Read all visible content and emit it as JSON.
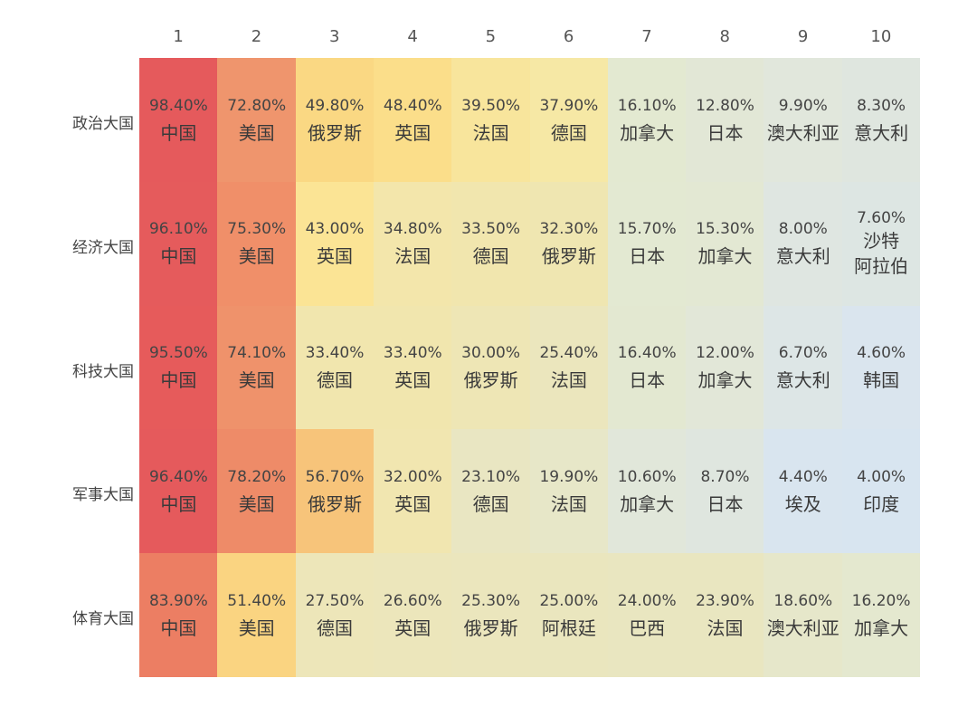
{
  "chart_data": {
    "type": "heatmap",
    "title": "",
    "columns": [
      "1",
      "2",
      "3",
      "4",
      "5",
      "6",
      "7",
      "8",
      "9",
      "10"
    ],
    "rows": [
      {
        "label": "政治大国",
        "cells": [
          {
            "value": "98.40%",
            "country": "中国",
            "color": "#e55a5c"
          },
          {
            "value": "72.80%",
            "country": "美国",
            "color": "#ef956d"
          },
          {
            "value": "49.80%",
            "country": "俄罗斯",
            "color": "#fad883"
          },
          {
            "value": "48.40%",
            "country": "英国",
            "color": "#fbde8a"
          },
          {
            "value": "39.50%",
            "country": "法国",
            "color": "#f8e59c"
          },
          {
            "value": "37.90%",
            "country": "德国",
            "color": "#f6e8a5"
          },
          {
            "value": "16.10%",
            "country": "加拿大",
            "color": "#e3e9d1"
          },
          {
            "value": "12.80%",
            "country": "日本",
            "color": "#e2e7d6"
          },
          {
            "value": "9.90%",
            "country": "澳大利亚",
            "color": "#e1e7dc"
          },
          {
            "value": "8.30%",
            "country": "意大利",
            "color": "#dfe6df"
          }
        ]
      },
      {
        "label": "经济大国",
        "cells": [
          {
            "value": "96.10%",
            "country": "中国",
            "color": "#e55b5c"
          },
          {
            "value": "75.30%",
            "country": "美国",
            "color": "#f08f69"
          },
          {
            "value": "43.00%",
            "country": "英国",
            "color": "#fbe495"
          },
          {
            "value": "34.80%",
            "country": "法国",
            "color": "#f3e6ab"
          },
          {
            "value": "33.50%",
            "country": "德国",
            "color": "#f1e6ae"
          },
          {
            "value": "32.30%",
            "country": "俄罗斯",
            "color": "#efe6b1"
          },
          {
            "value": "15.70%",
            "country": "日本",
            "color": "#e3e9d2"
          },
          {
            "value": "15.30%",
            "country": "加拿大",
            "color": "#e3e8d3"
          },
          {
            "value": "8.00%",
            "country": "意大利",
            "color": "#dfe6e1"
          },
          {
            "value": "7.60%",
            "country": "沙特\n阿拉伯",
            "color": "#dde6e3"
          }
        ]
      },
      {
        "label": "科技大国",
        "cells": [
          {
            "value": "95.50%",
            "country": "中国",
            "color": "#e65b5b"
          },
          {
            "value": "74.10%",
            "country": "美国",
            "color": "#ef926b"
          },
          {
            "value": "33.40%",
            "country": "德国",
            "color": "#f1e6ae"
          },
          {
            "value": "33.40%",
            "country": "英国",
            "color": "#f1e6ae"
          },
          {
            "value": "30.00%",
            "country": "俄罗斯",
            "color": "#eee6b5"
          },
          {
            "value": "25.40%",
            "country": "法国",
            "color": "#ebe6bd"
          },
          {
            "value": "16.40%",
            "country": "日本",
            "color": "#e3e8d1"
          },
          {
            "value": "12.00%",
            "country": "加拿大",
            "color": "#e2e7d8"
          },
          {
            "value": "6.70%",
            "country": "意大利",
            "color": "#dde6e6"
          },
          {
            "value": "4.60%",
            "country": "韩国",
            "color": "#dae5ee"
          }
        ]
      },
      {
        "label": "军事大国",
        "cells": [
          {
            "value": "96.40%",
            "country": "中国",
            "color": "#e55a5c"
          },
          {
            "value": "78.20%",
            "country": "美国",
            "color": "#ee8b68"
          },
          {
            "value": "56.70%",
            "country": "俄罗斯",
            "color": "#f7c47a"
          },
          {
            "value": "32.00%",
            "country": "英国",
            "color": "#f1e6b0"
          },
          {
            "value": "23.10%",
            "country": "德国",
            "color": "#e9e6c2"
          },
          {
            "value": "19.90%",
            "country": "法国",
            "color": "#e7e7c8"
          },
          {
            "value": "10.60%",
            "country": "加拿大",
            "color": "#e1e7da"
          },
          {
            "value": "8.70%",
            "country": "日本",
            "color": "#dfe6df"
          },
          {
            "value": "4.40%",
            "country": "埃及",
            "color": "#d9e5ef"
          },
          {
            "value": "4.00%",
            "country": "印度",
            "color": "#d8e5f0"
          }
        ]
      },
      {
        "label": "体育大国",
        "cells": [
          {
            "value": "83.90%",
            "country": "中国",
            "color": "#ec7e63"
          },
          {
            "value": "51.40%",
            "country": "美国",
            "color": "#fad481"
          },
          {
            "value": "27.50%",
            "country": "德国",
            "color": "#ede6b9"
          },
          {
            "value": "26.60%",
            "country": "英国",
            "color": "#ece6bb"
          },
          {
            "value": "25.30%",
            "country": "俄罗斯",
            "color": "#ebe6bd"
          },
          {
            "value": "25.00%",
            "country": "阿根廷",
            "color": "#eae6be"
          },
          {
            "value": "24.00%",
            "country": "巴西",
            "color": "#e9e6c0"
          },
          {
            "value": "23.90%",
            "country": "法国",
            "color": "#e9e6c0"
          },
          {
            "value": "18.60%",
            "country": "澳大利亚",
            "color": "#e6e7ca"
          },
          {
            "value": "16.20%",
            "country": "加拿大",
            "color": "#e4e8cf"
          }
        ]
      }
    ]
  }
}
